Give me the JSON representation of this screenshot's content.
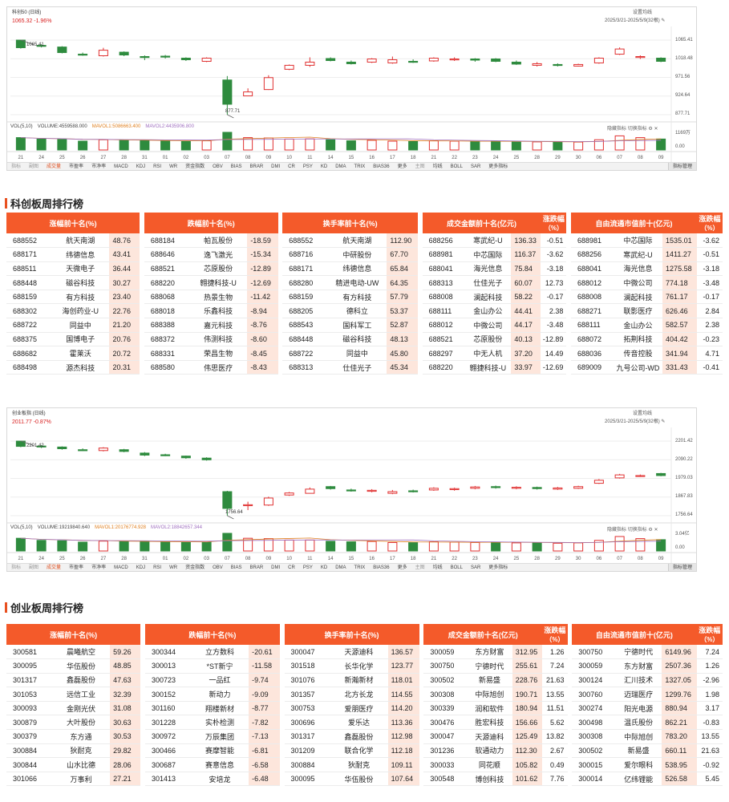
{
  "colors": {
    "up": "#e03030",
    "down": "#2e8b3e",
    "header_bg": "#f45a2a",
    "value_bg": "#fde6dc",
    "ma5": "#e08020",
    "ma10": "#a070c0",
    "ma20": "#8080a0"
  },
  "icons": [
    "settings-icon",
    "pencil-icon",
    "gear-icon",
    "close-icon"
  ],
  "star50": {
    "chart_title": "科创50 (日线)",
    "quote": "1065.32 -1.96%",
    "settings_label": "设置均线",
    "date_range": "2025/3/21-2025/5/9(32根)",
    "max_label": "1065.41",
    "min_label": "877.71",
    "y_ticks": [
      "1065.41",
      "1018.48",
      "971.56",
      "924.64",
      "877.71"
    ],
    "vol_ticks": [
      "1169万",
      "0.00"
    ],
    "vol_info": {
      "label": "VOL(5,10)",
      "volume": "VOLUME:4559588.000",
      "ma5": "MAVOL1:5086663.400",
      "ma10": "MAVOL2:4435906.800"
    },
    "vol_tools": {
      "hide": "隐藏指标",
      "switch": "切换指标"
    },
    "dates": [
      "21",
      "24",
      "25",
      "26",
      "27",
      "28",
      "31",
      "01",
      "02",
      "03",
      "07",
      "08",
      "09",
      "10",
      "11",
      "14",
      "15",
      "16",
      "17",
      "18",
      "21",
      "22",
      "23",
      "24",
      "25",
      "28",
      "29",
      "30",
      "06",
      "07",
      "08",
      "09"
    ],
    "candles": [
      {
        "o": 1065.4,
        "c": 1046.3,
        "h": 1066.0,
        "l": 1044.0
      },
      {
        "o": 1052.1,
        "c": 1050.0,
        "h": 1055.0,
        "l": 1047.0
      },
      {
        "o": 1048.0,
        "c": 1034.0,
        "h": 1050.0,
        "l": 1032.0
      },
      {
        "o": 1030.0,
        "c": 1029.0,
        "h": 1034.0,
        "l": 1026.0
      },
      {
        "o": 1026.0,
        "c": 1040.0,
        "h": 1046.0,
        "l": 1024.0
      },
      {
        "o": 1035.0,
        "c": 1028.0,
        "h": 1037.0,
        "l": 1025.0
      },
      {
        "o": 1024.0,
        "c": 1022.0,
        "h": 1027.0,
        "l": 1015.0
      },
      {
        "o": 1025.0,
        "c": 1023.0,
        "h": 1028.0,
        "l": 1019.0
      },
      {
        "o": 1020.0,
        "c": 1016.0,
        "h": 1022.0,
        "l": 1013.0
      },
      {
        "o": 1012.0,
        "c": 1020.0,
        "h": 1022.0,
        "l": 1010.0
      },
      {
        "o": 965.0,
        "c": 904.0,
        "h": 975.0,
        "l": 877.7
      },
      {
        "o": 925.0,
        "c": 935.0,
        "h": 944.0,
        "l": 925.0
      },
      {
        "o": 941.0,
        "c": 971.0,
        "h": 977.0,
        "l": 940.0
      },
      {
        "o": 992.0,
        "c": 1002.0,
        "h": 1004.0,
        "l": 990.0
      },
      {
        "o": 1002.0,
        "c": 1010.0,
        "h": 1022.0,
        "l": 998.0
      },
      {
        "o": 1019.0,
        "c": 1014.0,
        "h": 1022.0,
        "l": 1012.0
      },
      {
        "o": 1010.0,
        "c": 1006.0,
        "h": 1014.0,
        "l": 1004.0
      },
      {
        "o": 1010.0,
        "c": 1018.0,
        "h": 1020.0,
        "l": 1008.0
      },
      {
        "o": 1008.0,
        "c": 1016.0,
        "h": 1024.0,
        "l": 1006.0
      },
      {
        "o": 1012.0,
        "c": 1010.0,
        "h": 1017.0,
        "l": 1008.0
      },
      {
        "o": 1013.0,
        "c": 1020.0,
        "h": 1022.0,
        "l": 1011.0
      },
      {
        "o": 1017.0,
        "c": 1018.0,
        "h": 1022.0,
        "l": 1013.0
      },
      {
        "o": 1018.0,
        "c": 1015.0,
        "h": 1020.0,
        "l": 1011.0
      },
      {
        "o": 1018.0,
        "c": 1012.0,
        "h": 1020.0,
        "l": 1010.0
      },
      {
        "o": 1010.0,
        "c": 1005.0,
        "h": 1014.0,
        "l": 1003.0
      },
      {
        "o": 1002.0,
        "c": 1006.0,
        "h": 1010.0,
        "l": 999.0
      },
      {
        "o": 1004.0,
        "c": 1002.0,
        "h": 1007.0,
        "l": 999.0
      },
      {
        "o": 1000.0,
        "c": 1004.0,
        "h": 1006.0,
        "l": 999.0
      },
      {
        "o": 1008.0,
        "c": 1020.0,
        "h": 1022.0,
        "l": 1006.0
      },
      {
        "o": 1030.0,
        "c": 1043.0,
        "h": 1047.0,
        "l": 1028.0
      },
      {
        "o": 1022.0,
        "c": 1024.0,
        "h": 1027.0,
        "l": 1018.0
      },
      {
        "o": 1020.0,
        "c": 1012.0,
        "h": 1022.0,
        "l": 1010.0
      }
    ],
    "volumes": [
      0.7,
      0.62,
      0.6,
      0.5,
      0.58,
      0.55,
      0.55,
      0.5,
      0.48,
      0.52,
      1.0,
      0.7,
      0.68,
      0.62,
      0.63,
      0.58,
      0.52,
      0.55,
      0.5,
      0.48,
      0.52,
      0.5,
      0.48,
      0.5,
      0.45,
      0.46,
      0.44,
      0.45,
      0.58,
      0.8,
      0.7,
      0.62
    ]
  },
  "chinext": {
    "chart_title": "创业板指 (日线)",
    "quote": "2011.77 -0.87%",
    "settings_label": "设置均线",
    "date_range": "2025/3/21-2025/5/9(32根)",
    "max_label": "2201.42",
    "min_label": "1756.64",
    "y_ticks": [
      "2201.42",
      "2090.22",
      "1979.03",
      "1867.83",
      "1756.64"
    ],
    "vol_ticks": [
      "3.04亿",
      "0.00"
    ],
    "vol_info": {
      "label": "VOL(5,10)",
      "volume": "VOLUME:19219840.640",
      "ma5": "MAVOL1:20176774.928",
      "ma10": "MAVOL2:18842657.344"
    },
    "vol_tools": {
      "hide": "隐藏指标",
      "switch": "切换指标"
    },
    "dates": [
      "21",
      "24",
      "25",
      "26",
      "27",
      "28",
      "31",
      "01",
      "02",
      "03",
      "07",
      "08",
      "09",
      "10",
      "11",
      "14",
      "15",
      "16",
      "17",
      "18",
      "21",
      "22",
      "23",
      "24",
      "25",
      "28",
      "29",
      "30",
      "06",
      "07",
      "08",
      "09"
    ],
    "candles": [
      {
        "o": 2201.4,
        "c": 2170.0,
        "h": 2203.0,
        "l": 2165.0
      },
      {
        "o": 2172.0,
        "c": 2168.0,
        "h": 2178.0,
        "l": 2160.0
      },
      {
        "o": 2166.0,
        "c": 2156.0,
        "h": 2170.0,
        "l": 2150.0
      },
      {
        "o": 2150.0,
        "c": 2148.0,
        "h": 2158.0,
        "l": 2142.0
      },
      {
        "o": 2145.0,
        "c": 2160.0,
        "h": 2165.0,
        "l": 2140.0
      },
      {
        "o": 2150.0,
        "c": 2140.0,
        "h": 2155.0,
        "l": 2135.0
      },
      {
        "o": 2130.0,
        "c": 2118.0,
        "h": 2136.0,
        "l": 2112.0
      },
      {
        "o": 2120.0,
        "c": 2118.0,
        "h": 2126.0,
        "l": 2112.0
      },
      {
        "o": 2112.0,
        "c": 2102.0,
        "h": 2115.0,
        "l": 2096.0
      },
      {
        "o": 2100.0,
        "c": 2090.0,
        "h": 2105.0,
        "l": 2085.0
      },
      {
        "o": 1900.0,
        "c": 1800.0,
        "h": 1905.0,
        "l": 1756.6
      },
      {
        "o": 1820.0,
        "c": 1822.0,
        "h": 1840.0,
        "l": 1790.0
      },
      {
        "o": 1820.0,
        "c": 1862.0,
        "h": 1870.0,
        "l": 1815.0
      },
      {
        "o": 1880.0,
        "c": 1892.0,
        "h": 1898.0,
        "l": 1875.0
      },
      {
        "o": 1890.0,
        "c": 1915.0,
        "h": 1925.0,
        "l": 1888.0
      },
      {
        "o": 1930.0,
        "c": 1918.0,
        "h": 1934.0,
        "l": 1912.0
      },
      {
        "o": 1910.0,
        "c": 1905.0,
        "h": 1918.0,
        "l": 1900.0
      },
      {
        "o": 1902.0,
        "c": 1908.0,
        "h": 1915.0,
        "l": 1896.0
      },
      {
        "o": 1890.0,
        "c": 1900.0,
        "h": 1910.0,
        "l": 1885.0
      },
      {
        "o": 1905.0,
        "c": 1900.0,
        "h": 1912.0,
        "l": 1895.0
      },
      {
        "o": 1910.0,
        "c": 1920.0,
        "h": 1926.0,
        "l": 1905.0
      },
      {
        "o": 1912.0,
        "c": 1918.0,
        "h": 1924.0,
        "l": 1906.0
      },
      {
        "o": 1920.0,
        "c": 1928.0,
        "h": 1934.0,
        "l": 1914.0
      },
      {
        "o": 1930.0,
        "c": 1924.0,
        "h": 1936.0,
        "l": 1918.0
      },
      {
        "o": 1920.0,
        "c": 1926.0,
        "h": 1932.0,
        "l": 1914.0
      },
      {
        "o": 1925.0,
        "c": 1918.0,
        "h": 1930.0,
        "l": 1912.0
      },
      {
        "o": 1915.0,
        "c": 1922.0,
        "h": 1928.0,
        "l": 1910.0
      },
      {
        "o": 1920.0,
        "c": 1930.0,
        "h": 1935.0,
        "l": 1916.0
      },
      {
        "o": 1950.0,
        "c": 1968.0,
        "h": 1975.0,
        "l": 1946.0
      },
      {
        "o": 1982.0,
        "c": 2000.0,
        "h": 2006.0,
        "l": 1978.0
      },
      {
        "o": 1994.0,
        "c": 1996.0,
        "h": 2002.0,
        "l": 1988.0
      },
      {
        "o": 2008.0,
        "c": 1996.0,
        "h": 2012.0,
        "l": 1992.0
      }
    ],
    "volumes": [
      0.72,
      0.6,
      0.58,
      0.5,
      0.56,
      0.55,
      0.54,
      0.5,
      0.48,
      0.5,
      1.0,
      0.72,
      0.7,
      0.62,
      0.62,
      0.55,
      0.52,
      0.54,
      0.48,
      0.47,
      0.52,
      0.5,
      0.48,
      0.5,
      0.46,
      0.47,
      0.44,
      0.46,
      0.6,
      0.82,
      0.7,
      0.64
    ]
  },
  "indicator_bar": [
    "指标",
    "副图",
    "成交量",
    "市盈率",
    "市净率",
    "MACD",
    "KDJ",
    "RSI",
    "WR",
    "资金指数",
    "OBV",
    "BIAS",
    "BRAR",
    "DMI",
    "CR",
    "PSY",
    "KD",
    "DMA",
    "TRIX",
    "BIAS36",
    "更多",
    "主图",
    "均线",
    "BOLL",
    "SAR",
    "更多指标",
    "指标管理"
  ],
  "star_rank": {
    "title": "科创板周排行榜",
    "h_up": "涨幅前十名(%)",
    "h_down": "跌幅前十名(%)",
    "h_turn": "换手率前十名(%)",
    "h_amt": "成交金额前十名(亿元)",
    "h_cap": "自由流通市值前十(亿元)",
    "h_chg1": "涨跌幅",
    "h_chg2": "（%）",
    "rows": [
      {
        "u": [
          "688552",
          "航天南湖",
          "48.76"
        ],
        "d": [
          "688184",
          "帕瓦股份",
          "-18.59"
        ],
        "t": [
          "688552",
          "航天南湖",
          "112.90"
        ],
        "a": [
          "688256",
          "寒武纪-U",
          "136.33",
          "-0.51"
        ],
        "c": [
          "688981",
          "中芯国际",
          "1535.01",
          "-3.62"
        ]
      },
      {
        "u": [
          "688171",
          "纬德信息",
          "43.41"
        ],
        "d": [
          "688646",
          "逸飞激光",
          "-15.34"
        ],
        "t": [
          "688716",
          "中研股份",
          "67.70"
        ],
        "a": [
          "688981",
          "中芯国际",
          "116.37",
          "-3.62"
        ],
        "c": [
          "688256",
          "寒武纪-U",
          "1411.27",
          "-0.51"
        ]
      },
      {
        "u": [
          "688511",
          "天微电子",
          "36.44"
        ],
        "d": [
          "688521",
          "芯原股份",
          "-12.89"
        ],
        "t": [
          "688171",
          "纬德信息",
          "65.84"
        ],
        "a": [
          "688041",
          "海光信息",
          "75.84",
          "-3.18"
        ],
        "c": [
          "688041",
          "海光信息",
          "1275.58",
          "-3.18"
        ]
      },
      {
        "u": [
          "688448",
          "磁谷科技",
          "30.27"
        ],
        "d": [
          "688220",
          "翱捷科技-U",
          "-12.69"
        ],
        "t": [
          "688280",
          "精进电动-UW",
          "64.35"
        ],
        "a": [
          "688313",
          "仕佳光子",
          "60.07",
          "12.73"
        ],
        "c": [
          "688012",
          "中微公司",
          "774.18",
          "-3.48"
        ]
      },
      {
        "u": [
          "688159",
          "有方科技",
          "23.40"
        ],
        "d": [
          "688068",
          "热景生物",
          "-11.42"
        ],
        "t": [
          "688159",
          "有方科技",
          "57.79"
        ],
        "a": [
          "688008",
          "澜起科技",
          "58.22",
          "-0.17"
        ],
        "c": [
          "688008",
          "澜起科技",
          "761.17",
          "-0.17"
        ]
      },
      {
        "u": [
          "688302",
          "海创药业-U",
          "22.76"
        ],
        "d": [
          "688018",
          "乐鑫科技",
          "-8.94"
        ],
        "t": [
          "688205",
          "德科立",
          "53.37"
        ],
        "a": [
          "688111",
          "金山办公",
          "44.41",
          "2.38"
        ],
        "c": [
          "688271",
          "联影医疗",
          "626.46",
          "2.84"
        ]
      },
      {
        "u": [
          "688722",
          "同益中",
          "21.20"
        ],
        "d": [
          "688388",
          "嘉元科技",
          "-8.76"
        ],
        "t": [
          "688543",
          "国科军工",
          "52.87"
        ],
        "a": [
          "688012",
          "中微公司",
          "44.17",
          "-3.48"
        ],
        "c": [
          "688111",
          "金山办公",
          "582.57",
          "2.38"
        ]
      },
      {
        "u": [
          "688375",
          "国博电子",
          "20.76"
        ],
        "d": [
          "688372",
          "伟测科技",
          "-8.60"
        ],
        "t": [
          "688448",
          "磁谷科技",
          "48.13"
        ],
        "a": [
          "688521",
          "芯原股份",
          "40.13",
          "-12.89"
        ],
        "c": [
          "688072",
          "拓荆科技",
          "404.42",
          "-0.23"
        ]
      },
      {
        "u": [
          "688682",
          "霍莱沃",
          "20.72"
        ],
        "d": [
          "688331",
          "荣昌生物",
          "-8.45"
        ],
        "t": [
          "688722",
          "同益中",
          "45.80"
        ],
        "a": [
          "688297",
          "中无人机",
          "37.20",
          "14.49"
        ],
        "c": [
          "688036",
          "传音控股",
          "341.94",
          "4.71"
        ]
      },
      {
        "u": [
          "688498",
          "源杰科技",
          "20.31"
        ],
        "d": [
          "688580",
          "伟思医疗",
          "-8.43"
        ],
        "t": [
          "688313",
          "仕佳光子",
          "45.34"
        ],
        "a": [
          "688220",
          "翱捷科技-U",
          "33.97",
          "-12.69"
        ],
        "c": [
          "689009",
          "九号公司-WD",
          "331.43",
          "-0.41"
        ]
      }
    ]
  },
  "gem_rank": {
    "title": "创业板周排行榜",
    "h_up": "涨幅前十名(%)",
    "h_down": "跌幅前十名(%)",
    "h_turn": "换手率前十名(%)",
    "h_amt": "成交金额前十名(亿元)",
    "h_cap": "自由流通市值前十(亿元)",
    "h_chg1": "涨跌幅",
    "h_chg2": "（%）",
    "rows": [
      {
        "u": [
          "300581",
          "晨曦航空",
          "59.26"
        ],
        "d": [
          "300344",
          "立方数科",
          "-20.61"
        ],
        "t": [
          "300047",
          "天源迪科",
          "136.57"
        ],
        "a": [
          "300059",
          "东方财富",
          "312.95",
          "1.26"
        ],
        "c": [
          "300750",
          "宁德时代",
          "6149.96",
          "7.24"
        ]
      },
      {
        "u": [
          "300095",
          "华伍股份",
          "48.85"
        ],
        "d": [
          "300013",
          "*ST新宁",
          "-11.58"
        ],
        "t": [
          "301518",
          "长华化学",
          "123.77"
        ],
        "a": [
          "300750",
          "宁德时代",
          "255.61",
          "7.24"
        ],
        "c": [
          "300059",
          "东方财富",
          "2507.36",
          "1.26"
        ]
      },
      {
        "u": [
          "301317",
          "鑫磊股份",
          "47.63"
        ],
        "d": [
          "300723",
          "一品红",
          "-9.74"
        ],
        "t": [
          "301076",
          "新瀚新材",
          "118.01"
        ],
        "a": [
          "300502",
          "新易盛",
          "228.76",
          "21.63"
        ],
        "c": [
          "300124",
          "汇川技术",
          "1327.05",
          "-2.96"
        ]
      },
      {
        "u": [
          "301053",
          "远信工业",
          "32.39"
        ],
        "d": [
          "300152",
          "新动力",
          "-9.09"
        ],
        "t": [
          "301357",
          "北方长龙",
          "114.55"
        ],
        "a": [
          "300308",
          "中际旭创",
          "190.71",
          "13.55"
        ],
        "c": [
          "300760",
          "迈瑞医疗",
          "1299.76",
          "1.98"
        ]
      },
      {
        "u": [
          "300093",
          "金刚光伏",
          "31.08"
        ],
        "d": [
          "301160",
          "翔楼新材",
          "-8.77"
        ],
        "t": [
          "300753",
          "爱朋医疗",
          "114.20"
        ],
        "a": [
          "300339",
          "润和软件",
          "180.94",
          "11.51"
        ],
        "c": [
          "300274",
          "阳光电源",
          "880.94",
          "3.17"
        ]
      },
      {
        "u": [
          "300879",
          "大叶股份",
          "30.63"
        ],
        "d": [
          "301228",
          "实朴检测",
          "-7.82"
        ],
        "t": [
          "300696",
          "爱乐达",
          "113.36"
        ],
        "a": [
          "300476",
          "胜宏科技",
          "156.66",
          "5.62"
        ],
        "c": [
          "300498",
          "温氏股份",
          "862.21",
          "-0.83"
        ]
      },
      {
        "u": [
          "300379",
          "东方通",
          "30.53"
        ],
        "d": [
          "300972",
          "万辰集团",
          "-7.13"
        ],
        "t": [
          "301317",
          "鑫磊股份",
          "112.98"
        ],
        "a": [
          "300047",
          "天源迪科",
          "125.49",
          "13.82"
        ],
        "c": [
          "300308",
          "中际旭创",
          "783.20",
          "13.55"
        ]
      },
      {
        "u": [
          "300884",
          "狄耐克",
          "29.82"
        ],
        "d": [
          "300466",
          "赛摩智能",
          "-6.81"
        ],
        "t": [
          "301209",
          "联合化学",
          "112.18"
        ],
        "a": [
          "301236",
          "软通动力",
          "112.30",
          "2.67"
        ],
        "c": [
          "300502",
          "新易盛",
          "660.11",
          "21.63"
        ]
      },
      {
        "u": [
          "300844",
          "山水比德",
          "28.06"
        ],
        "d": [
          "300687",
          "赛意信息",
          "-6.58"
        ],
        "t": [
          "300884",
          "狄耐克",
          "109.11"
        ],
        "a": [
          "300033",
          "同花顺",
          "105.82",
          "0.49"
        ],
        "c": [
          "300015",
          "爱尔眼科",
          "538.95",
          "-0.92"
        ]
      },
      {
        "u": [
          "301066",
          "万事利",
          "27.21"
        ],
        "d": [
          "301413",
          "安培龙",
          "-6.48"
        ],
        "t": [
          "300095",
          "华伍股份",
          "107.64"
        ],
        "a": [
          "300548",
          "博创科技",
          "101.62",
          "7.76"
        ],
        "c": [
          "300014",
          "亿纬锂能",
          "526.58",
          "5.45"
        ]
      }
    ]
  }
}
